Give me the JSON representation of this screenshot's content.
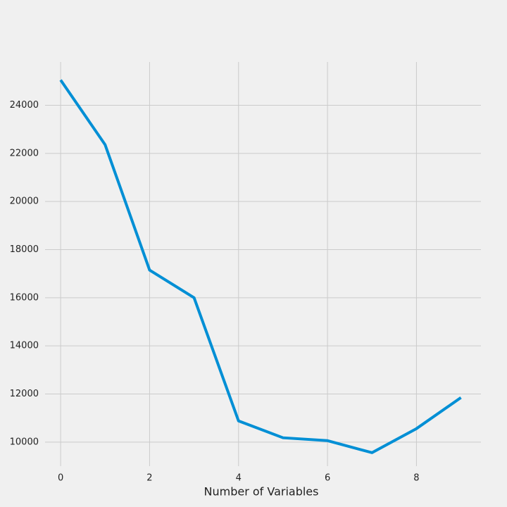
{
  "chart_data": {
    "type": "line",
    "x_label": "Number of Variables",
    "x": [
      0,
      1,
      2,
      3,
      4,
      5,
      6,
      7,
      8,
      9
    ],
    "series": [
      {
        "color": "#008fd5",
        "values": [
          25050,
          22360,
          17150,
          16000,
          10880,
          10180,
          10060,
          9560,
          10560,
          11850
        ]
      }
    ],
    "xlim": [
      -0.35,
      9.45
    ],
    "xticks": [
      0,
      2,
      4,
      6,
      8
    ],
    "ylim": [
      9000,
      25800
    ],
    "yticks": [
      10000,
      12000,
      14000,
      16000,
      18000,
      20000,
      22000,
      24000
    ],
    "grid": true
  }
}
